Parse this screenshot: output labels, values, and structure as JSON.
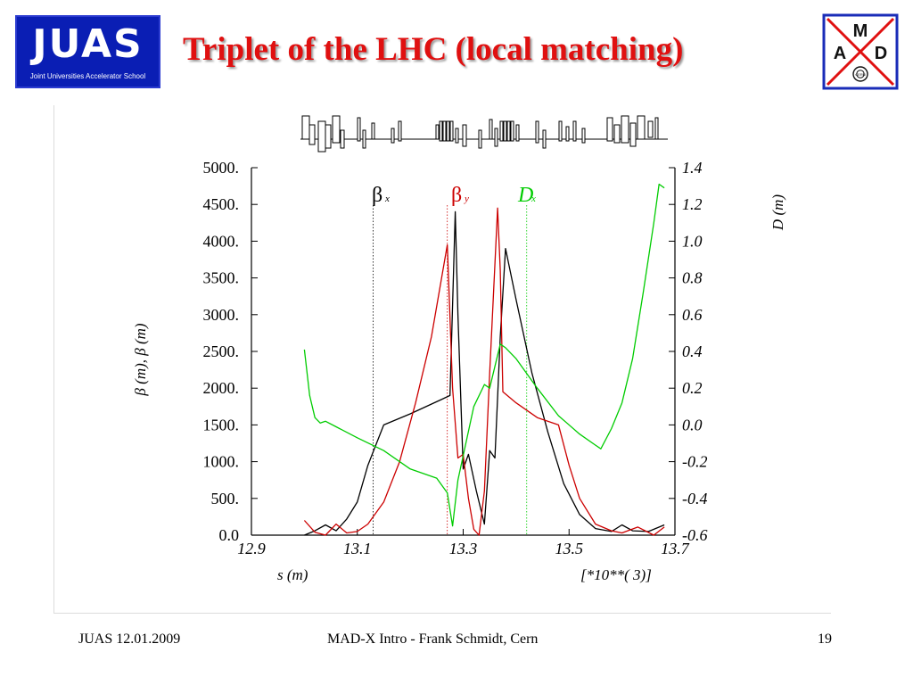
{
  "header": {
    "logo_left_text": "JUAS",
    "logo_left_subtext": "Joint Universities Accelerator School",
    "title": "Triplet of the LHC (local matching)",
    "logo_right_letters": {
      "top": "M",
      "left": "A",
      "right": "D",
      "bottom": "CERN"
    }
  },
  "footer": {
    "left": "JUAS 12.01.2009",
    "center": "MAD-X Intro - Frank Schmidt, Cern",
    "page": "19"
  },
  "colors": {
    "title": "#e01010",
    "juas_bg": "#0a1eb4",
    "beta_x": "#000000",
    "beta_y": "#cc0000",
    "dispersion": "#00cc00"
  },
  "chart_data": {
    "type": "line",
    "x_ticks": [
      "12.9",
      "13.1",
      "13.3",
      "13.5",
      "13.7"
    ],
    "x_tick_values": [
      12.9,
      13.1,
      13.3,
      13.5,
      13.7
    ],
    "xlim": [
      12.9,
      13.7
    ],
    "xlabel": "s (m)",
    "xscale_note": "[*10**(  3)]",
    "ylabel_left": "β (m), β (m)",
    "ylabel_right": "D (m)",
    "y_left_ticks": [
      "0.0",
      "500.",
      "1000.",
      "1500.",
      "2000.",
      "2500.",
      "3000.",
      "3500.",
      "4000.",
      "4500.",
      "5000."
    ],
    "y_left_tick_values": [
      0,
      500,
      1000,
      1500,
      2000,
      2500,
      3000,
      3500,
      4000,
      4500,
      5000
    ],
    "ylim_left": [
      0,
      5000
    ],
    "y_right_ticks": [
      "-0.6",
      "-0.4",
      "-0.2",
      "0.0",
      "0.2",
      "0.4",
      "0.6",
      "0.8",
      "1.0",
      "1.2",
      "1.4"
    ],
    "y_right_tick_values": [
      -0.6,
      -0.4,
      -0.2,
      0.0,
      0.2,
      0.4,
      0.6,
      0.8,
      1.0,
      1.2,
      1.4
    ],
    "ylim_right": [
      -0.6,
      1.4
    ],
    "grid": false,
    "legend": [
      {
        "symbol": "β",
        "subscript": "x",
        "marker_s": 13.13
      },
      {
        "symbol": "β",
        "subscript": "y",
        "marker_s": 13.27
      },
      {
        "symbol": "D",
        "subscript": "x",
        "marker_s": 13.42
      }
    ],
    "series": [
      {
        "axis": "left",
        "points": [
          [
            13.0,
            0
          ],
          [
            13.02,
            60
          ],
          [
            13.04,
            140
          ],
          [
            13.06,
            60
          ],
          [
            13.08,
            220
          ],
          [
            13.1,
            450
          ],
          [
            13.12,
            950
          ],
          [
            13.15,
            1500
          ],
          [
            13.2,
            1650
          ],
          [
            13.26,
            1850
          ],
          [
            13.275,
            1900
          ],
          [
            13.285,
            4400
          ],
          [
            13.29,
            3000
          ],
          [
            13.3,
            900
          ],
          [
            13.31,
            1100
          ],
          [
            13.325,
            600
          ],
          [
            13.34,
            150
          ],
          [
            13.35,
            1150
          ],
          [
            13.36,
            1050
          ],
          [
            13.37,
            2700
          ],
          [
            13.38,
            3900
          ],
          [
            13.4,
            3200
          ],
          [
            13.43,
            2200
          ],
          [
            13.46,
            1400
          ],
          [
            13.49,
            700
          ],
          [
            13.52,
            280
          ],
          [
            13.55,
            90
          ],
          [
            13.58,
            50
          ],
          [
            13.6,
            140
          ],
          [
            13.62,
            60
          ],
          [
            13.65,
            50
          ],
          [
            13.68,
            140
          ]
        ]
      },
      {
        "axis": "left",
        "points": [
          [
            13.0,
            200
          ],
          [
            13.02,
            40
          ],
          [
            13.04,
            0
          ],
          [
            13.06,
            150
          ],
          [
            13.08,
            30
          ],
          [
            13.1,
            50
          ],
          [
            13.12,
            150
          ],
          [
            13.15,
            450
          ],
          [
            13.18,
            1000
          ],
          [
            13.21,
            1800
          ],
          [
            13.24,
            2700
          ],
          [
            13.27,
            3950
          ],
          [
            13.28,
            2000
          ],
          [
            13.29,
            1050
          ],
          [
            13.3,
            1100
          ],
          [
            13.31,
            500
          ],
          [
            13.32,
            80
          ],
          [
            13.33,
            0
          ],
          [
            13.34,
            600
          ],
          [
            13.35,
            2200
          ],
          [
            13.365,
            4450
          ],
          [
            13.37,
            3600
          ],
          [
            13.375,
            1950
          ],
          [
            13.4,
            1800
          ],
          [
            13.44,
            1600
          ],
          [
            13.48,
            1500
          ],
          [
            13.5,
            950
          ],
          [
            13.52,
            500
          ],
          [
            13.55,
            150
          ],
          [
            13.58,
            60
          ],
          [
            13.6,
            30
          ],
          [
            13.63,
            110
          ],
          [
            13.66,
            0
          ],
          [
            13.68,
            110
          ]
        ]
      },
      {
        "axis": "right",
        "points": [
          [
            13.0,
            0.41
          ],
          [
            13.01,
            0.16
          ],
          [
            13.02,
            0.04
          ],
          [
            13.03,
            0.01
          ],
          [
            13.04,
            0.02
          ],
          [
            13.06,
            -0.01
          ],
          [
            13.1,
            -0.07
          ],
          [
            13.15,
            -0.14
          ],
          [
            13.2,
            -0.24
          ],
          [
            13.25,
            -0.29
          ],
          [
            13.27,
            -0.37
          ],
          [
            13.28,
            -0.55
          ],
          [
            13.29,
            -0.3
          ],
          [
            13.32,
            0.1
          ],
          [
            13.34,
            0.22
          ],
          [
            13.35,
            0.2
          ],
          [
            13.37,
            0.44
          ],
          [
            13.38,
            0.42
          ],
          [
            13.4,
            0.36
          ],
          [
            13.44,
            0.2
          ],
          [
            13.48,
            0.05
          ],
          [
            13.52,
            -0.05
          ],
          [
            13.55,
            -0.11
          ],
          [
            13.56,
            -0.13
          ],
          [
            13.58,
            -0.02
          ],
          [
            13.6,
            0.12
          ],
          [
            13.62,
            0.36
          ],
          [
            13.64,
            0.72
          ],
          [
            13.66,
            1.1
          ],
          [
            13.67,
            1.31
          ],
          [
            13.68,
            1.29
          ]
        ]
      }
    ]
  }
}
